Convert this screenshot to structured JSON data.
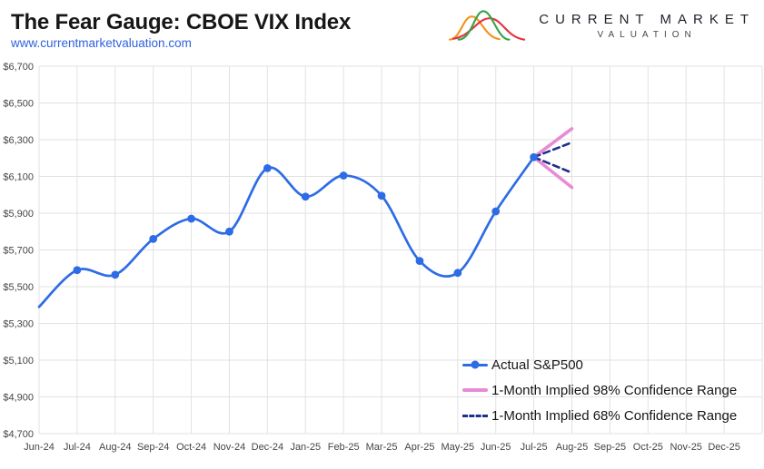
{
  "header": {
    "title": "The Fear Gauge: CBOE VIX Index",
    "url": "www.currentmarketvaluation.com",
    "logo": {
      "line1": "CURRENT MARKET",
      "line2": "VALUATION",
      "bell_colors": [
        "#f6921e",
        "#37a44c",
        "#e5333f"
      ]
    }
  },
  "chart_data": {
    "type": "line",
    "title": "The Fear Gauge: CBOE VIX Index",
    "categories": [
      "Jun-24",
      "Jul-24",
      "Aug-24",
      "Sep-24",
      "Oct-24",
      "Nov-24",
      "Dec-24",
      "Jan-25",
      "Feb-25",
      "Mar-25",
      "Apr-25",
      "May-25",
      "Jun-25",
      "Jul-25",
      "Aug-25",
      "Sep-25",
      "Oct-25",
      "Nov-25",
      "Dec-25"
    ],
    "ylim": [
      4700,
      6700
    ],
    "y_tick_values": [
      4700,
      4900,
      5100,
      5300,
      5500,
      5700,
      5900,
      6100,
      6300,
      6500,
      6700
    ],
    "y_tick_labels": [
      "$4,700",
      "$4,900",
      "$5,100",
      "$5,300",
      "$5,500",
      "$5,700",
      "$5,900",
      "$6,100",
      "$6,300",
      "$6,500",
      "$6,700"
    ],
    "grid": true,
    "grid_color": "#e2e2e2",
    "legend_position": "inside-bottom-right",
    "series": [
      {
        "name": "Actual S&P500",
        "type": "line",
        "color": "#2e6ce5",
        "marker": "circle",
        "x": [
          "Jun-24",
          "Jul-24",
          "Aug-24",
          "Sep-24",
          "Oct-24",
          "Nov-24",
          "Dec-24",
          "Jan-25",
          "Feb-25",
          "Mar-25",
          "Apr-25",
          "May-25",
          "Jun-25",
          "Jul-25"
        ],
        "values": [
          5390,
          5590,
          5565,
          5760,
          5870,
          5800,
          6145,
          5990,
          6105,
          5995,
          5640,
          5575,
          5910,
          6205
        ]
      },
      {
        "name": "1-Month Implied 98% Confidence Range",
        "type": "fan",
        "color": "#e88bd5",
        "line_style": "solid",
        "anchor": {
          "x": "Jul-25",
          "value": 6205
        },
        "end": {
          "x": "Aug-25",
          "upper": 6360,
          "lower": 6040
        }
      },
      {
        "name": "1-Month Implied 68% Confidence Range",
        "type": "fan",
        "color": "#202f8a",
        "line_style": "dashed",
        "anchor": {
          "x": "Jul-25",
          "value": 6205
        },
        "end": {
          "x": "Aug-25",
          "upper": 6285,
          "lower": 6120
        }
      }
    ]
  }
}
